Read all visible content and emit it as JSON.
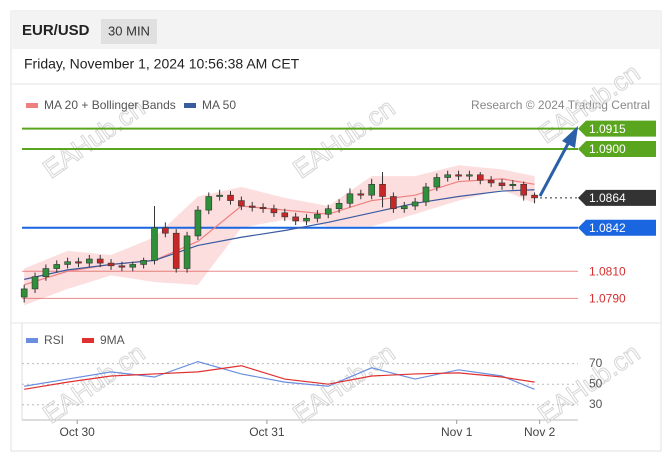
{
  "chart_data": {
    "type": "candlestick",
    "symbol": "EUR/USD",
    "timeframe": "30 MIN",
    "subtitle": "Friday, November 1, 2024 10:56:38 AM CET",
    "source": "Research © 2024 Trading Central",
    "watermark": "EAHub.cn",
    "up_color": "#2f8f3a",
    "down_color": "#c62828",
    "xlim": [
      -0.2,
      51
    ],
    "ylim": [
      1.078,
      1.0925
    ],
    "xticks": [
      {
        "value": 4.88,
        "label": "Oct 30"
      },
      {
        "value": 22.35,
        "label": "Oct 31"
      },
      {
        "value": 39.83,
        "label": "Nov 1"
      },
      {
        "value": 47.47,
        "label": "Nov 2"
      }
    ],
    "open": [
      1.0791,
      1.0797,
      1.0806,
      1.0812,
      1.0815,
      1.0817,
      1.0816,
      1.0819,
      1.0816,
      1.0814,
      1.0813,
      1.0815,
      1.0818,
      1.0842,
      1.0838,
      1.0812,
      1.0836,
      1.0855,
      1.0865,
      1.0866,
      1.0862,
      1.0858,
      1.0857,
      1.0856,
      1.0853,
      1.085,
      1.0847,
      1.0849,
      1.0852,
      1.0856,
      1.086,
      1.0867,
      1.0866,
      1.0874,
      1.0865,
      1.0856,
      1.0858,
      1.0861,
      1.0872,
      1.0879,
      1.0881,
      1.088,
      1.0881,
      1.0877,
      1.0875,
      1.0873,
      1.0874,
      1.0866
    ],
    "high": [
      1.08,
      1.0809,
      1.0815,
      1.0818,
      1.082,
      1.082,
      1.0822,
      1.0822,
      1.0819,
      1.0817,
      1.0817,
      1.082,
      1.0858,
      1.0846,
      1.0841,
      1.0839,
      1.0858,
      1.0868,
      1.087,
      1.0869,
      1.0865,
      1.0861,
      1.086,
      1.0859,
      1.0856,
      1.0853,
      1.0852,
      1.0855,
      1.0859,
      1.0863,
      1.0871,
      1.087,
      1.0878,
      1.0883,
      1.0868,
      1.0861,
      1.0864,
      1.0875,
      1.0882,
      1.0884,
      1.0884,
      1.0884,
      1.0883,
      1.088,
      1.0878,
      1.0877,
      1.0876,
      1.0868
    ],
    "low": [
      1.0787,
      1.0794,
      1.0803,
      1.0809,
      1.0812,
      1.0813,
      1.0813,
      1.0813,
      1.0811,
      1.081,
      1.081,
      1.0812,
      1.0815,
      1.0835,
      1.0809,
      1.0809,
      1.0833,
      1.0852,
      1.0862,
      1.0859,
      1.0855,
      1.0854,
      1.0853,
      1.085,
      1.0847,
      1.0844,
      1.0844,
      1.0846,
      1.0849,
      1.0853,
      1.0857,
      1.0863,
      1.0863,
      1.0857,
      1.0853,
      1.0853,
      1.0855,
      1.0858,
      1.0869,
      1.0876,
      1.0877,
      1.0877,
      1.0874,
      1.0872,
      1.087,
      1.087,
      1.0862,
      1.086
    ],
    "close": [
      1.0797,
      1.0806,
      1.0812,
      1.0815,
      1.0817,
      1.0816,
      1.0819,
      1.0816,
      1.0814,
      1.0813,
      1.0815,
      1.0818,
      1.0842,
      1.0838,
      1.0812,
      1.0836,
      1.0855,
      1.0865,
      1.0866,
      1.0862,
      1.0858,
      1.0857,
      1.0856,
      1.0853,
      1.085,
      1.0847,
      1.0849,
      1.0852,
      1.0856,
      1.086,
      1.0867,
      1.0866,
      1.0874,
      1.0865,
      1.0856,
      1.0858,
      1.0861,
      1.0872,
      1.0879,
      1.0881,
      1.088,
      1.0881,
      1.0877,
      1.0875,
      1.0873,
      1.0874,
      1.0866,
      1.0864
    ],
    "line_x": [
      0,
      4,
      8,
      12,
      16,
      20,
      24,
      28,
      32,
      36,
      40,
      44,
      47
    ],
    "band": {
      "upper": [
        1.0812,
        1.0825,
        1.0822,
        1.0835,
        1.0865,
        1.0872,
        1.0864,
        1.0858,
        1.088,
        1.088,
        1.0888,
        1.0885,
        1.088
      ],
      "lower": [
        1.0785,
        1.0797,
        1.0807,
        1.0802,
        1.08,
        1.0842,
        1.0848,
        1.0843,
        1.0843,
        1.0852,
        1.0862,
        1.087,
        1.086
      ],
      "color": "#fbd3d3"
    },
    "series": [
      {
        "name": "MA 20 + Bollinger Bands",
        "color": "#f08080",
        "values": [
          1.08,
          1.081,
          1.0815,
          1.0818,
          1.0832,
          1.0858,
          1.0855,
          1.0852,
          1.0862,
          1.0866,
          1.0876,
          1.0878,
          1.0874
        ]
      },
      {
        "name": "MA 50",
        "color": "#3a5ba0",
        "values": [
          1.0804,
          1.0811,
          1.0815,
          1.0818,
          1.0829,
          1.0835,
          1.084,
          1.0846,
          1.0853,
          1.086,
          1.0865,
          1.0869,
          1.087
        ]
      }
    ],
    "levels": [
      {
        "value": 1.0915,
        "label": "1.0915",
        "color": "#5aa51e",
        "boxed": true
      },
      {
        "value": 1.09,
        "label": "1.0900",
        "color": "#5aa51e",
        "boxed": true
      },
      {
        "value": 1.0864,
        "label": "1.0864",
        "color": "#333333",
        "boxed": true
      },
      {
        "value": 1.0842,
        "label": "1.0842",
        "color": "#1a66e0",
        "boxed": true
      },
      {
        "value": 1.081,
        "label": "1.0810",
        "color": "#d32f2f",
        "boxed": false
      },
      {
        "value": 1.079,
        "label": "1.0790",
        "color": "#d32f2f",
        "boxed": false
      }
    ],
    "rsi": {
      "ylim": [
        20,
        95
      ],
      "yticks": [
        30,
        50,
        70
      ],
      "series": [
        {
          "name": "RSI",
          "color": "#6b8fe0",
          "values": [
            48,
            55,
            62,
            57,
            72,
            60,
            52,
            48,
            66,
            55,
            64,
            58,
            45
          ]
        },
        {
          "name": "9MA",
          "color": "#e03030",
          "values": [
            45,
            52,
            58,
            60,
            62,
            68,
            55,
            50,
            58,
            60,
            61,
            57,
            52
          ]
        }
      ]
    }
  }
}
